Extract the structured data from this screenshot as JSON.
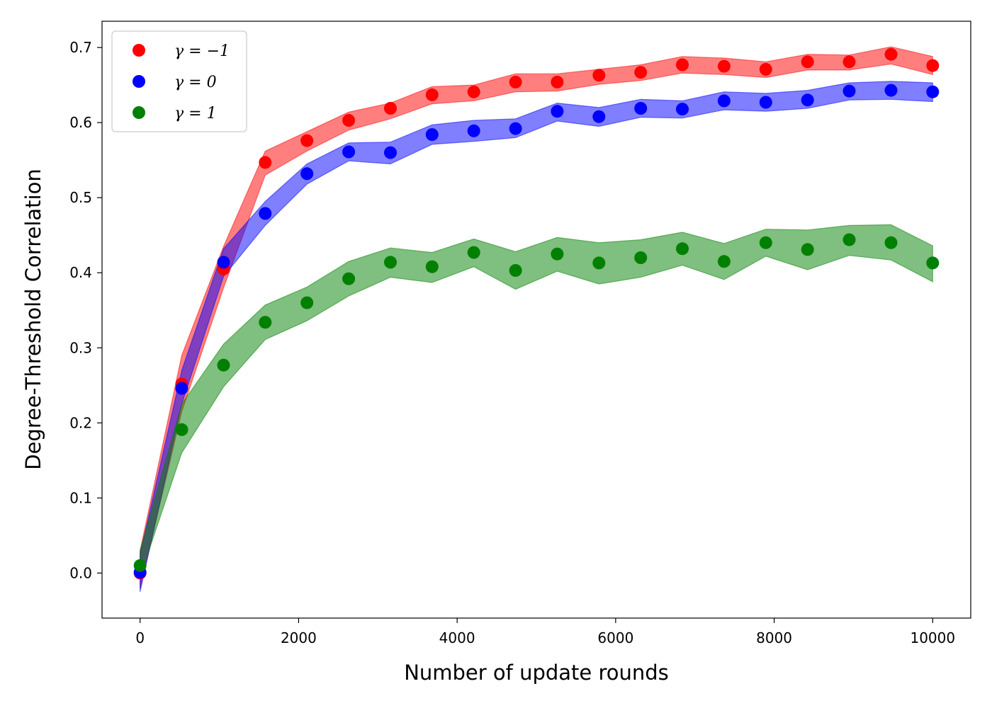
{
  "chart_data": {
    "type": "scatter",
    "title": "",
    "xlabel": "Number of update rounds",
    "ylabel": "Degree-Threshold Correlation",
    "xlim": [
      -480,
      10480
    ],
    "ylim": [
      -0.06,
      0.735
    ],
    "xticks": [
      0,
      2000,
      4000,
      6000,
      8000,
      10000
    ],
    "yticks": [
      0.0,
      0.1,
      0.2,
      0.3,
      0.4,
      0.5,
      0.6,
      0.7
    ],
    "xtick_labels": [
      "0",
      "2000",
      "4000",
      "6000",
      "8000",
      "10000"
    ],
    "ytick_labels": [
      "0.0",
      "0.1",
      "0.2",
      "0.3",
      "0.4",
      "0.5",
      "0.6",
      "0.7"
    ],
    "grid": false,
    "legend_position": "upper-left",
    "x": [
      0,
      526,
      1053,
      1579,
      2105,
      2632,
      3158,
      3684,
      4211,
      4737,
      5263,
      5789,
      6316,
      6842,
      7368,
      7895,
      8421,
      8947,
      9474,
      10000
    ],
    "series": [
      {
        "name": "γ = −1",
        "color": "#ff0000",
        "values": [
          0.0,
          0.252,
          0.405,
          0.547,
          0.576,
          0.603,
          0.619,
          0.637,
          0.641,
          0.654,
          0.654,
          0.663,
          0.667,
          0.677,
          0.675,
          0.671,
          0.681,
          0.681,
          0.691,
          0.676
        ],
        "lower": [
          -0.02,
          0.215,
          0.38,
          0.53,
          0.562,
          0.59,
          0.605,
          0.625,
          0.629,
          0.641,
          0.642,
          0.651,
          0.656,
          0.666,
          0.664,
          0.66,
          0.67,
          0.67,
          0.678,
          0.664
        ],
        "upper": [
          0.03,
          0.29,
          0.435,
          0.562,
          0.588,
          0.614,
          0.626,
          0.648,
          0.65,
          0.665,
          0.665,
          0.671,
          0.677,
          0.688,
          0.686,
          0.681,
          0.691,
          0.69,
          0.701,
          0.688
        ]
      },
      {
        "name": "γ = 0",
        "color": "#0000ff",
        "values": [
          0.001,
          0.246,
          0.414,
          0.479,
          0.532,
          0.561,
          0.56,
          0.584,
          0.589,
          0.592,
          0.615,
          0.608,
          0.619,
          0.618,
          0.629,
          0.627,
          0.63,
          0.642,
          0.643,
          0.641
        ],
        "lower": [
          -0.025,
          0.225,
          0.395,
          0.463,
          0.518,
          0.549,
          0.545,
          0.571,
          0.575,
          0.58,
          0.602,
          0.595,
          0.607,
          0.606,
          0.617,
          0.615,
          0.619,
          0.63,
          0.631,
          0.628
        ],
        "upper": [
          0.025,
          0.27,
          0.432,
          0.495,
          0.545,
          0.573,
          0.574,
          0.597,
          0.603,
          0.605,
          0.626,
          0.62,
          0.631,
          0.629,
          0.641,
          0.639,
          0.643,
          0.653,
          0.655,
          0.653
        ]
      },
      {
        "name": "γ = 1",
        "color": "#008000",
        "values": [
          0.01,
          0.191,
          0.277,
          0.334,
          0.36,
          0.392,
          0.414,
          0.408,
          0.427,
          0.403,
          0.425,
          0.413,
          0.42,
          0.432,
          0.415,
          0.44,
          0.431,
          0.444,
          0.44,
          0.413
        ],
        "lower": [
          -0.005,
          0.16,
          0.248,
          0.311,
          0.336,
          0.369,
          0.394,
          0.387,
          0.408,
          0.378,
          0.402,
          0.385,
          0.394,
          0.41,
          0.391,
          0.422,
          0.404,
          0.423,
          0.417,
          0.388
        ],
        "upper": [
          0.03,
          0.225,
          0.305,
          0.357,
          0.381,
          0.415,
          0.433,
          0.427,
          0.445,
          0.428,
          0.447,
          0.44,
          0.444,
          0.454,
          0.439,
          0.458,
          0.457,
          0.463,
          0.464,
          0.436
        ]
      }
    ]
  }
}
